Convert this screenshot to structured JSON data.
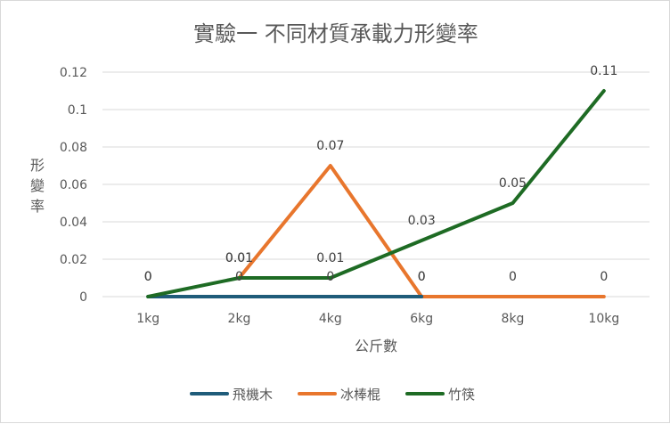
{
  "chart_data": {
    "type": "line",
    "title": "實驗一 不同材質承載力形變率",
    "xlabel": "公斤數",
    "ylabel": "形變率",
    "categories": [
      "1kg",
      "2kg",
      "4kg",
      "6kg",
      "8kg",
      "10kg"
    ],
    "ylim": [
      0,
      0.12
    ],
    "yticks": [
      "0",
      "0.02",
      "0.04",
      "0.06",
      "0.08",
      "0.1",
      "0.12"
    ],
    "grid": true,
    "legend_position": "bottom",
    "series": [
      {
        "name": "飛機木",
        "color": "#1F5C7A",
        "values": [
          0,
          0,
          0,
          0,
          null,
          null
        ],
        "labels": [
          "0",
          "0",
          "0",
          "0",
          "",
          ""
        ]
      },
      {
        "name": "冰棒棍",
        "color": "#E8762D",
        "values": [
          null,
          0.01,
          0.07,
          0,
          0,
          0
        ],
        "labels": [
          "",
          "0.01",
          "0.07",
          "0",
          "0",
          "0"
        ]
      },
      {
        "name": "竹筷",
        "color": "#1E6B24",
        "values": [
          0,
          0.01,
          0.01,
          0.03,
          0.05,
          0.11
        ],
        "labels": [
          "0",
          "0.01",
          "0.01",
          "0.03",
          "0.05",
          "0.11"
        ]
      }
    ]
  }
}
